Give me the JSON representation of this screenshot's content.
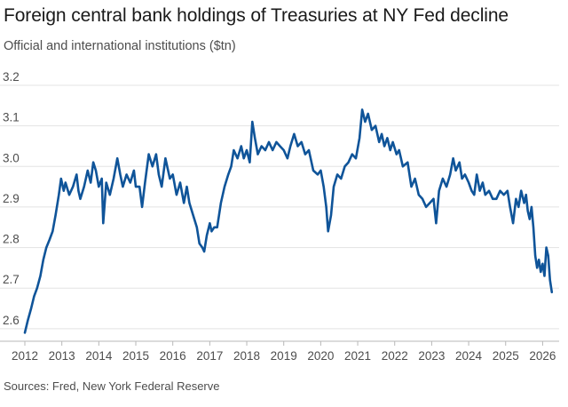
{
  "header": {
    "title": "Foreign central bank holdings of Treasuries at NY Fed decline",
    "subtitle": "Official and international institutions ($tn)"
  },
  "footer": {
    "source": "Sources: Fred, New York Federal Reserve"
  },
  "colors": {
    "line": "#0f5499",
    "grid": "#e3e3e3",
    "text": "#4d4d4d"
  },
  "chart_data": {
    "type": "line",
    "title": "Foreign central bank holdings of Treasuries at NY Fed decline",
    "subtitle": "Official and international institutions ($tn)",
    "xlabel": "",
    "ylabel": "",
    "x_ticks": [
      "2012",
      "2013",
      "2014",
      "2015",
      "2016",
      "2017",
      "2018",
      "2019",
      "2020",
      "2021",
      "2022",
      "2023",
      "2024",
      "2025",
      "2026"
    ],
    "y_ticks": [
      "2.6",
      "2.7",
      "2.8",
      "2.9",
      "3.0",
      "3.1",
      "3.2"
    ],
    "xlim": [
      2012,
      2026.35
    ],
    "ylim": [
      2.58,
      3.2
    ],
    "grid": "horizontal",
    "series": [
      {
        "values": [
          [
            2012.0,
            2.59
          ],
          [
            2012.0,
            2.59
          ],
          [
            2012.08,
            2.62
          ],
          [
            2012.17,
            2.65
          ],
          [
            2012.25,
            2.68
          ],
          [
            2012.33,
            2.7
          ],
          [
            2012.42,
            2.73
          ],
          [
            2012.5,
            2.77
          ],
          [
            2012.58,
            2.8
          ],
          [
            2012.67,
            2.82
          ],
          [
            2012.75,
            2.84
          ],
          [
            2012.83,
            2.88
          ],
          [
            2012.92,
            2.93
          ],
          [
            2012.98,
            2.97
          ],
          [
            2013.05,
            2.94
          ],
          [
            2013.1,
            2.96
          ],
          [
            2013.2,
            2.93
          ],
          [
            2013.3,
            2.95
          ],
          [
            2013.4,
            2.98
          ],
          [
            2013.45,
            2.94
          ],
          [
            2013.5,
            2.92
          ],
          [
            2013.6,
            2.95
          ],
          [
            2013.7,
            2.99
          ],
          [
            2013.78,
            2.96
          ],
          [
            2013.85,
            3.01
          ],
          [
            2013.92,
            2.99
          ],
          [
            2014.0,
            2.95
          ],
          [
            2014.08,
            2.97
          ],
          [
            2014.12,
            2.86
          ],
          [
            2014.2,
            2.96
          ],
          [
            2014.3,
            2.93
          ],
          [
            2014.4,
            2.97
          ],
          [
            2014.5,
            3.02
          ],
          [
            2014.58,
            2.98
          ],
          [
            2014.65,
            2.95
          ],
          [
            2014.75,
            2.98
          ],
          [
            2014.85,
            2.96
          ],
          [
            2014.95,
            2.99
          ],
          [
            2015.0,
            2.95
          ],
          [
            2015.1,
            2.95
          ],
          [
            2015.17,
            2.9
          ],
          [
            2015.25,
            2.96
          ],
          [
            2015.35,
            3.03
          ],
          [
            2015.45,
            3.0
          ],
          [
            2015.55,
            3.03
          ],
          [
            2015.62,
            2.98
          ],
          [
            2015.7,
            2.95
          ],
          [
            2015.8,
            3.02
          ],
          [
            2015.92,
            2.97
          ],
          [
            2016.0,
            2.98
          ],
          [
            2016.1,
            2.93
          ],
          [
            2016.2,
            2.96
          ],
          [
            2016.3,
            2.91
          ],
          [
            2016.38,
            2.95
          ],
          [
            2016.45,
            2.91
          ],
          [
            2016.55,
            2.88
          ],
          [
            2016.65,
            2.85
          ],
          [
            2016.72,
            2.81
          ],
          [
            2016.8,
            2.8
          ],
          [
            2016.85,
            2.79
          ],
          [
            2016.92,
            2.83
          ],
          [
            2017.0,
            2.86
          ],
          [
            2017.05,
            2.84
          ],
          [
            2017.12,
            2.85
          ],
          [
            2017.2,
            2.85
          ],
          [
            2017.3,
            2.91
          ],
          [
            2017.4,
            2.95
          ],
          [
            2017.5,
            2.98
          ],
          [
            2017.58,
            3.0
          ],
          [
            2017.65,
            3.04
          ],
          [
            2017.75,
            3.02
          ],
          [
            2017.85,
            3.05
          ],
          [
            2017.92,
            3.02
          ],
          [
            2018.0,
            3.04
          ],
          [
            2018.08,
            3.01
          ],
          [
            2018.15,
            3.11
          ],
          [
            2018.22,
            3.07
          ],
          [
            2018.3,
            3.03
          ],
          [
            2018.4,
            3.05
          ],
          [
            2018.5,
            3.04
          ],
          [
            2018.6,
            3.06
          ],
          [
            2018.7,
            3.04
          ],
          [
            2018.8,
            3.06
          ],
          [
            2018.9,
            3.05
          ],
          [
            2019.0,
            3.04
          ],
          [
            2019.1,
            3.02
          ],
          [
            2019.18,
            3.05
          ],
          [
            2019.28,
            3.08
          ],
          [
            2019.38,
            3.05
          ],
          [
            2019.48,
            3.06
          ],
          [
            2019.58,
            3.03
          ],
          [
            2019.68,
            3.04
          ],
          [
            2019.8,
            2.99
          ],
          [
            2019.92,
            2.98
          ],
          [
            2020.0,
            2.99
          ],
          [
            2020.08,
            2.95
          ],
          [
            2020.15,
            2.9
          ],
          [
            2020.2,
            2.84
          ],
          [
            2020.28,
            2.88
          ],
          [
            2020.35,
            2.95
          ],
          [
            2020.45,
            2.98
          ],
          [
            2020.55,
            2.97
          ],
          [
            2020.65,
            3.0
          ],
          [
            2020.75,
            3.01
          ],
          [
            2020.85,
            3.03
          ],
          [
            2020.95,
            3.02
          ],
          [
            2021.05,
            3.07
          ],
          [
            2021.12,
            3.14
          ],
          [
            2021.2,
            3.11
          ],
          [
            2021.28,
            3.13
          ],
          [
            2021.38,
            3.09
          ],
          [
            2021.48,
            3.1
          ],
          [
            2021.58,
            3.06
          ],
          [
            2021.65,
            3.08
          ],
          [
            2021.72,
            3.05
          ],
          [
            2021.8,
            3.07
          ],
          [
            2021.88,
            3.04
          ],
          [
            2021.95,
            3.06
          ],
          [
            2022.05,
            3.03
          ],
          [
            2022.12,
            3.04
          ],
          [
            2022.22,
            3.0
          ],
          [
            2022.35,
            3.01
          ],
          [
            2022.45,
            2.95
          ],
          [
            2022.55,
            2.97
          ],
          [
            2022.65,
            2.93
          ],
          [
            2022.75,
            2.92
          ],
          [
            2022.85,
            2.9
          ],
          [
            2022.95,
            2.91
          ],
          [
            2023.05,
            2.92
          ],
          [
            2023.12,
            2.86
          ],
          [
            2023.2,
            2.94
          ],
          [
            2023.3,
            2.97
          ],
          [
            2023.4,
            2.95
          ],
          [
            2023.5,
            2.98
          ],
          [
            2023.58,
            3.02
          ],
          [
            2023.65,
            2.99
          ],
          [
            2023.75,
            3.01
          ],
          [
            2023.82,
            2.97
          ],
          [
            2023.9,
            2.98
          ],
          [
            2024.0,
            2.96
          ],
          [
            2024.08,
            2.94
          ],
          [
            2024.15,
            2.93
          ],
          [
            2024.22,
            2.98
          ],
          [
            2024.3,
            2.94
          ],
          [
            2024.38,
            2.96
          ],
          [
            2024.45,
            2.93
          ],
          [
            2024.55,
            2.94
          ],
          [
            2024.65,
            2.92
          ],
          [
            2024.75,
            2.92
          ],
          [
            2024.85,
            2.94
          ],
          [
            2024.95,
            2.93
          ],
          [
            2025.05,
            2.94
          ],
          [
            2025.12,
            2.9
          ],
          [
            2025.2,
            2.86
          ],
          [
            2025.28,
            2.92
          ],
          [
            2025.35,
            2.9
          ],
          [
            2025.42,
            2.94
          ],
          [
            2025.5,
            2.91
          ],
          [
            2025.55,
            2.93
          ],
          [
            2025.6,
            2.89
          ],
          [
            2025.65,
            2.87
          ],
          [
            2025.7,
            2.9
          ],
          [
            2025.75,
            2.85
          ],
          [
            2025.8,
            2.78
          ],
          [
            2025.85,
            2.75
          ],
          [
            2025.9,
            2.77
          ],
          [
            2025.95,
            2.74
          ],
          [
            2026.0,
            2.76
          ],
          [
            2026.05,
            2.73
          ],
          [
            2026.1,
            2.8
          ],
          [
            2026.15,
            2.78
          ],
          [
            2026.2,
            2.72
          ],
          [
            2026.25,
            2.69
          ]
        ]
      }
    ]
  }
}
